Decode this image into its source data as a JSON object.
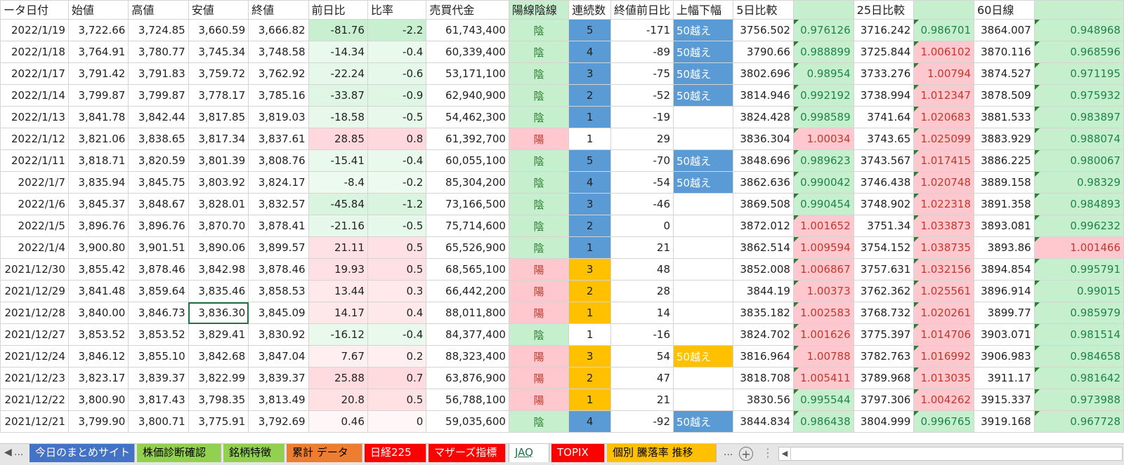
{
  "headers": [
    "ータ日付",
    "始値",
    "高値",
    "安値",
    "終値",
    "前日比",
    "比率",
    "売買代金",
    "陽線陰線",
    "連続数",
    "終値前日比",
    "上幅下幅",
    "5日比較",
    "",
    "25日比較",
    "",
    "60日線",
    ""
  ],
  "rows": [
    {
      "date": "2022/1/19",
      "open": "3,722.66",
      "high": "3,724.85",
      "low": "3,660.59",
      "close": "3,666.82",
      "diff": "-81.76",
      "ratio": "-2.2",
      "turnover": "61,743,400",
      "candle": "陰",
      "streak": "5",
      "close_diff": "-171",
      "tag": "50越え",
      "d5": "3756.502",
      "r5": "0.976126",
      "d25": "3716.242",
      "r25": "0.986701",
      "d60": "3864.007",
      "r60": "0.948968"
    },
    {
      "date": "2022/1/18",
      "open": "3,764.91",
      "high": "3,780.77",
      "low": "3,745.34",
      "close": "3,748.58",
      "diff": "-14.34",
      "ratio": "-0.4",
      "turnover": "60,339,400",
      "candle": "陰",
      "streak": "4",
      "close_diff": "-89",
      "tag": "50越え",
      "d5": "3790.66",
      "r5": "0.988899",
      "d25": "3725.844",
      "r25": "1.006102",
      "d60": "3870.116",
      "r60": "0.968596"
    },
    {
      "date": "2022/1/17",
      "open": "3,791.42",
      "high": "3,791.83",
      "low": "3,759.72",
      "close": "3,762.92",
      "diff": "-22.24",
      "ratio": "-0.6",
      "turnover": "53,171,100",
      "candle": "陰",
      "streak": "3",
      "close_diff": "-75",
      "tag": "50越え",
      "d5": "3802.696",
      "r5": "0.98954",
      "d25": "3733.276",
      "r25": "1.00794",
      "d60": "3874.527",
      "r60": "0.971195"
    },
    {
      "date": "2022/1/14",
      "open": "3,799.87",
      "high": "3,799.87",
      "low": "3,778.17",
      "close": "3,785.16",
      "diff": "-33.87",
      "ratio": "-0.9",
      "turnover": "62,940,900",
      "candle": "陰",
      "streak": "2",
      "close_diff": "-52",
      "tag": "50越え",
      "d5": "3814.946",
      "r5": "0.992192",
      "d25": "3738.994",
      "r25": "1.012347",
      "d60": "3878.509",
      "r60": "0.975932"
    },
    {
      "date": "2022/1/13",
      "open": "3,841.78",
      "high": "3,842.44",
      "low": "3,817.85",
      "close": "3,819.03",
      "diff": "-18.58",
      "ratio": "-0.5",
      "turnover": "54,462,300",
      "candle": "陰",
      "streak": "1",
      "close_diff": "-19",
      "tag": "",
      "d5": "3824.428",
      "r5": "0.998589",
      "d25": "3741.64",
      "r25": "1.020683",
      "d60": "3881.533",
      "r60": "0.983897"
    },
    {
      "date": "2022/1/12",
      "open": "3,821.06",
      "high": "3,838.65",
      "low": "3,817.34",
      "close": "3,837.61",
      "diff": "28.85",
      "ratio": "0.8",
      "turnover": "61,392,700",
      "candle": "陽",
      "streak": "1",
      "close_diff": "29",
      "tag": "",
      "d5": "3836.304",
      "r5": "1.00034",
      "d25": "3743.65",
      "r25": "1.025099",
      "d60": "3883.929",
      "r60": "0.988074"
    },
    {
      "date": "2022/1/11",
      "open": "3,818.71",
      "high": "3,820.59",
      "low": "3,801.39",
      "close": "3,808.76",
      "diff": "-15.41",
      "ratio": "-0.4",
      "turnover": "60,055,100",
      "candle": "陰",
      "streak": "5",
      "close_diff": "-70",
      "tag": "50越え",
      "d5": "3848.696",
      "r5": "0.989623",
      "d25": "3743.567",
      "r25": "1.017415",
      "d60": "3886.225",
      "r60": "0.980067"
    },
    {
      "date": "2022/1/7",
      "open": "3,835.94",
      "high": "3,845.75",
      "low": "3,803.92",
      "close": "3,824.17",
      "diff": "-8.4",
      "ratio": "-0.2",
      "turnover": "85,304,200",
      "candle": "陰",
      "streak": "4",
      "close_diff": "-54",
      "tag": "50越え",
      "d5": "3862.636",
      "r5": "0.990042",
      "d25": "3746.438",
      "r25": "1.020748",
      "d60": "3889.158",
      "r60": "0.98329"
    },
    {
      "date": "2022/1/6",
      "open": "3,845.37",
      "high": "3,848.67",
      "low": "3,828.01",
      "close": "3,832.57",
      "diff": "-45.84",
      "ratio": "-1.2",
      "turnover": "73,166,500",
      "candle": "陰",
      "streak": "3",
      "close_diff": "-46",
      "tag": "",
      "d5": "3869.508",
      "r5": "0.990454",
      "d25": "3748.902",
      "r25": "1.022318",
      "d60": "3891.358",
      "r60": "0.984893"
    },
    {
      "date": "2022/1/5",
      "open": "3,896.76",
      "high": "3,896.76",
      "low": "3,870.70",
      "close": "3,878.41",
      "diff": "-21.16",
      "ratio": "-0.5",
      "turnover": "75,714,600",
      "candle": "陰",
      "streak": "2",
      "close_diff": "0",
      "tag": "",
      "d5": "3872.012",
      "r5": "1.001652",
      "d25": "3751.34",
      "r25": "1.033873",
      "d60": "3893.081",
      "r60": "0.996232"
    },
    {
      "date": "2022/1/4",
      "open": "3,900.80",
      "high": "3,901.51",
      "low": "3,890.06",
      "close": "3,899.57",
      "diff": "21.11",
      "ratio": "0.5",
      "turnover": "65,526,900",
      "candle": "陰",
      "streak": "1",
      "close_diff": "21",
      "tag": "",
      "d5": "3862.514",
      "r5": "1.009594",
      "d25": "3754.152",
      "r25": "1.038735",
      "d60": "3893.86",
      "r60": "1.001466"
    },
    {
      "date": "2021/12/30",
      "open": "3,855.42",
      "high": "3,878.46",
      "low": "3,842.98",
      "close": "3,878.46",
      "diff": "19.93",
      "ratio": "0.5",
      "turnover": "68,565,100",
      "candle": "陽",
      "streak": "3",
      "close_diff": "48",
      "tag": "",
      "d5": "3852.008",
      "r5": "1.006867",
      "d25": "3757.631",
      "r25": "1.032156",
      "d60": "3894.854",
      "r60": "0.995791"
    },
    {
      "date": "2021/12/29",
      "open": "3,841.48",
      "high": "3,859.64",
      "low": "3,835.46",
      "close": "3,858.53",
      "diff": "13.44",
      "ratio": "0.3",
      "turnover": "66,442,200",
      "candle": "陽",
      "streak": "2",
      "close_diff": "28",
      "tag": "",
      "d5": "3844.19",
      "r5": "1.00373",
      "d25": "3762.362",
      "r25": "1.025561",
      "d60": "3896.914",
      "r60": "0.99015"
    },
    {
      "date": "2021/12/28",
      "open": "3,840.00",
      "high": "3,846.73",
      "low": "3,836.30",
      "close": "3,845.09",
      "diff": "14.17",
      "ratio": "0.4",
      "turnover": "88,011,800",
      "candle": "陽",
      "streak": "1",
      "close_diff": "14",
      "tag": "",
      "d5": "3835.182",
      "r5": "1.002583",
      "d25": "3768.732",
      "r25": "1.020261",
      "d60": "3899.77",
      "r60": "0.985979"
    },
    {
      "date": "2021/12/27",
      "open": "3,853.52",
      "high": "3,853.52",
      "low": "3,829.41",
      "close": "3,830.92",
      "diff": "-16.12",
      "ratio": "-0.4",
      "turnover": "84,377,400",
      "candle": "陰",
      "streak": "1",
      "close_diff": "-16",
      "tag": "",
      "d5": "3824.702",
      "r5": "1.001626",
      "d25": "3775.397",
      "r25": "1.014706",
      "d60": "3903.071",
      "r60": "0.981514"
    },
    {
      "date": "2021/12/24",
      "open": "3,846.12",
      "high": "3,855.10",
      "low": "3,842.68",
      "close": "3,847.04",
      "diff": "7.67",
      "ratio": "0.2",
      "turnover": "88,323,400",
      "candle": "陽",
      "streak": "3",
      "close_diff": "54",
      "tag": "50越え",
      "d5": "3816.964",
      "r5": "1.00788",
      "d25": "3782.763",
      "r25": "1.016992",
      "d60": "3906.983",
      "r60": "0.984658"
    },
    {
      "date": "2021/12/23",
      "open": "3,823.17",
      "high": "3,839.37",
      "low": "3,822.99",
      "close": "3,839.37",
      "diff": "25.88",
      "ratio": "0.7",
      "turnover": "63,876,900",
      "candle": "陽",
      "streak": "2",
      "close_diff": "47",
      "tag": "",
      "d5": "3818.708",
      "r5": "1.005411",
      "d25": "3789.968",
      "r25": "1.013035",
      "d60": "3911.17",
      "r60": "0.981642"
    },
    {
      "date": "2021/12/22",
      "open": "3,800.90",
      "high": "3,817.43",
      "low": "3,798.35",
      "close": "3,813.49",
      "diff": "20.8",
      "ratio": "0.5",
      "turnover": "56,788,100",
      "candle": "陽",
      "streak": "1",
      "close_diff": "21",
      "tag": "",
      "d5": "3830.56",
      "r5": "0.995544",
      "d25": "3797.306",
      "r25": "1.004262",
      "d60": "3915.337",
      "r60": "0.973988"
    },
    {
      "date": "2021/12/21",
      "open": "3,799.90",
      "high": "3,800.71",
      "low": "3,775.91",
      "close": "3,792.69",
      "diff": "0.46",
      "ratio": "0",
      "turnover": "59,035,600",
      "candle": "陰",
      "streak": "4",
      "close_diff": "-92",
      "tag": "50越え",
      "d5": "3844.834",
      "r5": "0.986438",
      "d25": "3804.999",
      "r25": "0.996765",
      "d60": "3919.168",
      "r60": "0.967728"
    }
  ],
  "selected_cell": {
    "row": 13,
    "col": "low"
  },
  "sheet_tabs": [
    {
      "label": "今日のまとめサイト",
      "bg": "#4472c4",
      "fg": "#ffffff"
    },
    {
      "label": "株価診断確認",
      "bg": "#92d050",
      "fg": "#000000"
    },
    {
      "label": "銘柄特徴",
      "bg": "#92d050",
      "fg": "#000000"
    },
    {
      "label": "累計 データ",
      "bg": "#ed7d31",
      "fg": "#000000"
    },
    {
      "label": "日経225",
      "bg": "#ff0000",
      "fg": "#ffffff"
    },
    {
      "label": "マザーズ指標",
      "bg": "#ff0000",
      "fg": "#ffffff"
    },
    {
      "label": "JAQ",
      "bg": "#ffffff",
      "fg": "#217346",
      "active": true
    },
    {
      "label": "TOPIX",
      "bg": "#ff0000",
      "fg": "#ffffff"
    },
    {
      "label": "個別 騰落率 推移",
      "bg": "#ffc000",
      "fg": "#000000"
    }
  ],
  "tab_nav": {
    "left_arrow": "◀",
    "ellipsis": "...",
    "more": "...",
    "add": "+",
    "vdots": "⋮",
    "scroll_left": "◀"
  },
  "colors": {
    "up_bg": "#ffc7ce",
    "down_bg": "#c6efce",
    "streak_down": "#5b9bd5",
    "streak_up": "#ffc000"
  }
}
